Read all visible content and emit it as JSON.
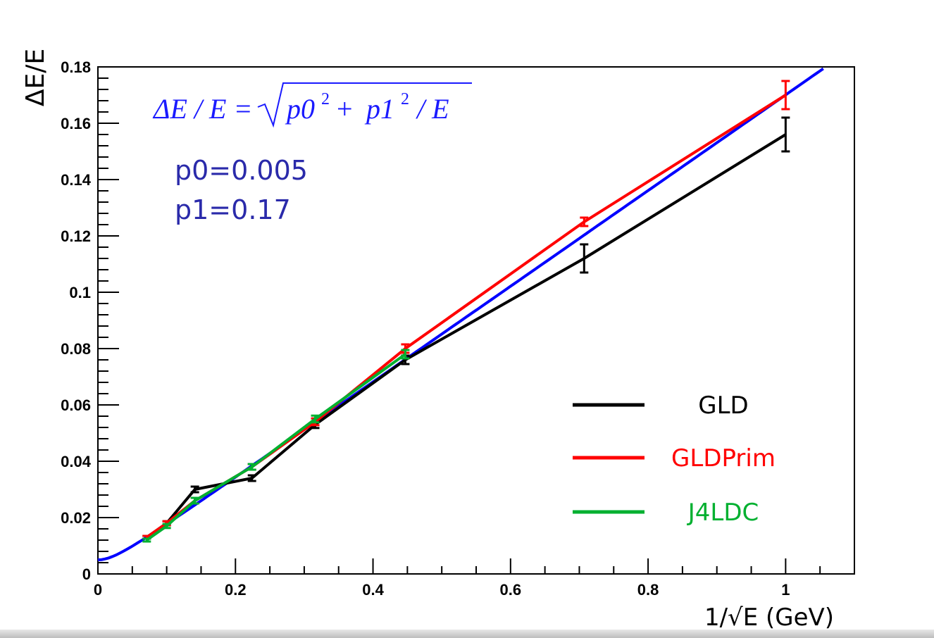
{
  "chart_data": {
    "type": "line",
    "title": "",
    "xlabel": "1/√E (GeV)",
    "ylabel": "ΔE/E",
    "xlim": [
      0,
      1.1
    ],
    "ylim": [
      0,
      0.18
    ],
    "x_ticks": [
      0,
      0.2,
      0.4,
      0.6,
      0.8,
      1
    ],
    "x_tick_labels": [
      "0",
      "0.2",
      "0.4",
      "0.6",
      "0.8",
      "1"
    ],
    "y_ticks": [
      0,
      0.02,
      0.04,
      0.06,
      0.08,
      0.1,
      0.12,
      0.14,
      0.16,
      0.18
    ],
    "y_tick_labels": [
      "0",
      "0.02",
      "0.04",
      "0.06",
      "0.08",
      "0.1",
      "0.12",
      "0.14",
      "0.16",
      "0.18"
    ],
    "grid": false,
    "legend_position": "bottom-right",
    "annotations": {
      "fit_params": [
        "p0=0.005",
        "p1=0.17"
      ]
    },
    "series": [
      {
        "name": "GLD",
        "color": "#000000",
        "x": [
          0.071,
          0.1,
          0.141,
          0.224,
          0.316,
          0.447,
          0.707,
          1.0
        ],
        "y": [
          0.013,
          0.018,
          0.03,
          0.034,
          0.053,
          0.076,
          0.112,
          0.156
        ],
        "yerr": [
          0.0005,
          0.0007,
          0.001,
          0.001,
          0.0012,
          0.0015,
          0.005,
          0.006
        ]
      },
      {
        "name": "GLDPrim",
        "color": "#ff0000",
        "x": [
          0.071,
          0.1,
          0.141,
          0.224,
          0.316,
          0.447,
          0.707,
          1.0
        ],
        "y": [
          0.013,
          0.018,
          0.026,
          0.038,
          0.054,
          0.08,
          0.125,
          0.17
        ],
        "yerr": [
          0.0005,
          0.0007,
          0.001,
          0.001,
          0.0012,
          0.0015,
          0.0015,
          0.005
        ]
      },
      {
        "name": "J4LDC",
        "color": "#00b030",
        "x": [
          0.071,
          0.1,
          0.141,
          0.224,
          0.316,
          0.447
        ],
        "y": [
          0.012,
          0.017,
          0.026,
          0.038,
          0.055,
          0.078
        ],
        "yerr": [
          0.0005,
          0.0007,
          0.001,
          0.001,
          0.0012,
          0.0015
        ]
      }
    ],
    "fit_color": "#0000ff"
  }
}
